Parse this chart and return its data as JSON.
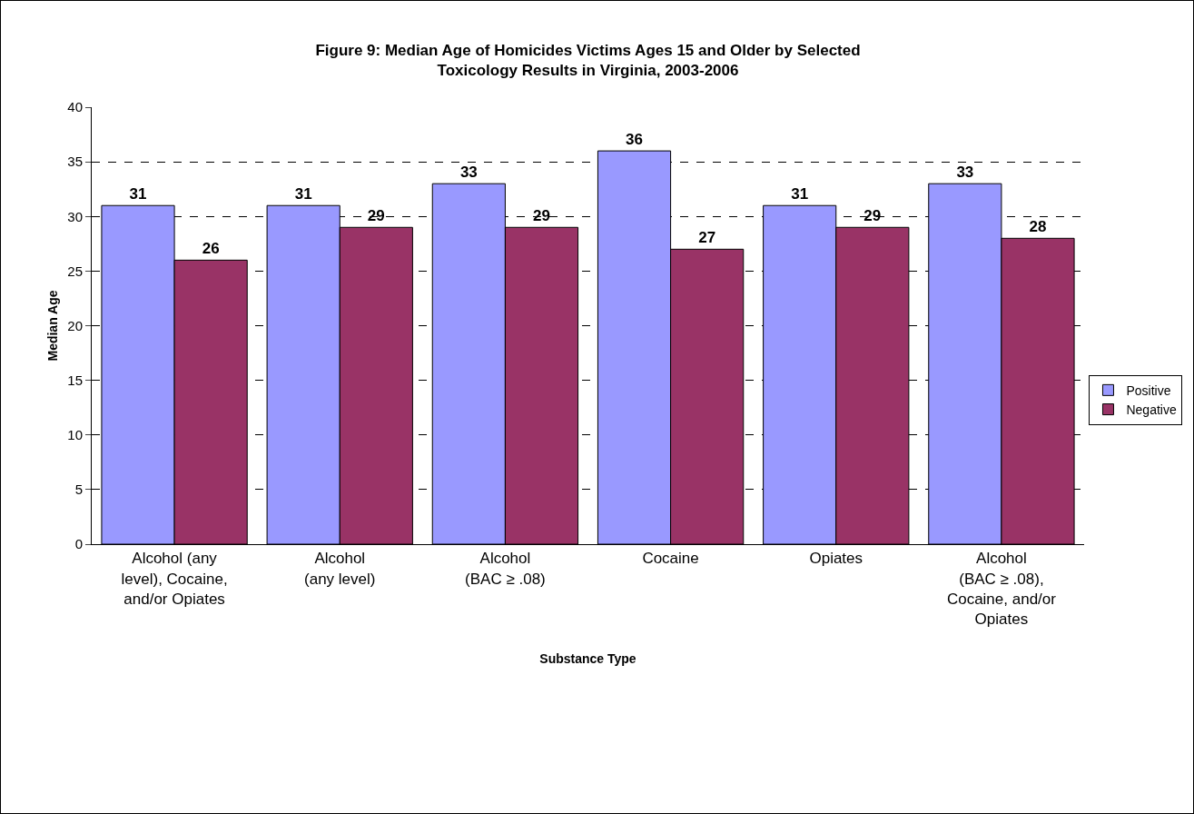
{
  "chart_data": {
    "type": "bar",
    "title": "Figure 9: Median Age of Homicides Victims Ages 15 and Older by Selected\nToxicology Results in Virginia, 2003-2006",
    "xlabel": "Substance Type",
    "ylabel": "Median Age",
    "categories": [
      "Alcohol (any\nlevel), Cocaine,\nand/or Opiates",
      "Alcohol\n(any level)",
      "Alcohol\n(BAC ≥ .08)",
      "Cocaine",
      "Opiates",
      "Alcohol\n(BAC ≥ .08),\nCocaine, and/or\nOpiates"
    ],
    "series": [
      {
        "name": "Positive",
        "color": "#9999ff",
        "values": [
          31,
          31,
          33,
          36,
          31,
          33
        ]
      },
      {
        "name": "Negative",
        "color": "#993366",
        "values": [
          26,
          29,
          29,
          27,
          29,
          28
        ]
      }
    ],
    "ylim": [
      0,
      40
    ],
    "yticks": [
      0,
      5,
      10,
      15,
      20,
      25,
      30,
      35,
      40
    ],
    "grid": "y",
    "legend": "right",
    "data_labels": true
  }
}
